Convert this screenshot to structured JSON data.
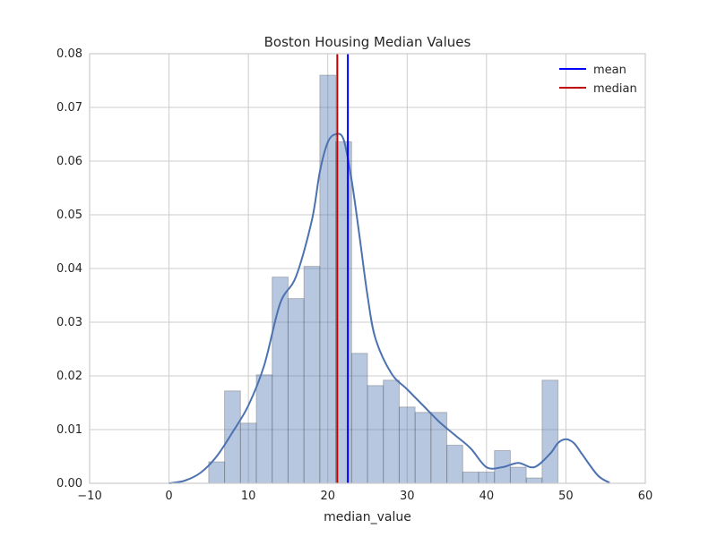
{
  "chart_data": {
    "type": "bar",
    "title": "Boston Housing Median Values",
    "xlabel": "median_value",
    "ylabel": "",
    "xlim": [
      -10,
      60
    ],
    "ylim": [
      0,
      0.08
    ],
    "xticks": [
      -10,
      0,
      10,
      20,
      30,
      40,
      50,
      60
    ],
    "yticks": [
      0.0,
      0.01,
      0.02,
      0.03,
      0.04,
      0.05,
      0.06,
      0.07,
      0.08
    ],
    "xtick_labels": [
      "−10",
      "0",
      "10",
      "20",
      "30",
      "40",
      "50",
      "60"
    ],
    "ytick_labels": [
      "0.00",
      "0.01",
      "0.02",
      "0.03",
      "0.04",
      "0.05",
      "0.06",
      "0.07",
      "0.08"
    ],
    "grid": true,
    "legend_position": "top-right",
    "histogram": {
      "bin_start": 5,
      "bin_width": 2,
      "values": [
        0.004,
        0.0172,
        0.0112,
        0.0202,
        0.0384,
        0.0344,
        0.0404,
        0.076,
        0.0636,
        0.0242,
        0.0182,
        0.0192,
        0.0142,
        0.0132,
        0.0132,
        0.0071,
        0.0021,
        0.0021,
        0.0061,
        0.003,
        0.001,
        0.0192
      ],
      "color": "#4c72b0"
    },
    "kde": {
      "x": [
        0,
        2,
        4,
        6,
        8,
        10,
        12,
        14,
        16,
        18,
        19,
        20,
        21,
        22,
        23,
        24,
        25,
        26,
        28,
        30,
        32,
        34,
        36,
        38,
        40,
        42,
        44,
        46,
        48,
        49,
        50,
        51,
        52,
        54,
        55.5
      ],
      "y": [
        0.0,
        0.0005,
        0.002,
        0.005,
        0.0095,
        0.0145,
        0.022,
        0.0335,
        0.0385,
        0.049,
        0.058,
        0.0635,
        0.065,
        0.064,
        0.0565,
        0.046,
        0.035,
        0.027,
        0.0205,
        0.0175,
        0.0145,
        0.0115,
        0.009,
        0.0065,
        0.003,
        0.003,
        0.0038,
        0.003,
        0.0055,
        0.0075,
        0.0082,
        0.0075,
        0.0055,
        0.0015,
        0.0001
      ],
      "color": "#4c72b0"
    },
    "vlines": [
      {
        "name": "mean",
        "x": 22.53,
        "color": "#0000ff"
      },
      {
        "name": "median",
        "x": 21.2,
        "color": "#c00000"
      }
    ],
    "legend": [
      {
        "label": "mean",
        "color": "#0000ff"
      },
      {
        "label": "median",
        "color": "#c00000"
      }
    ]
  }
}
